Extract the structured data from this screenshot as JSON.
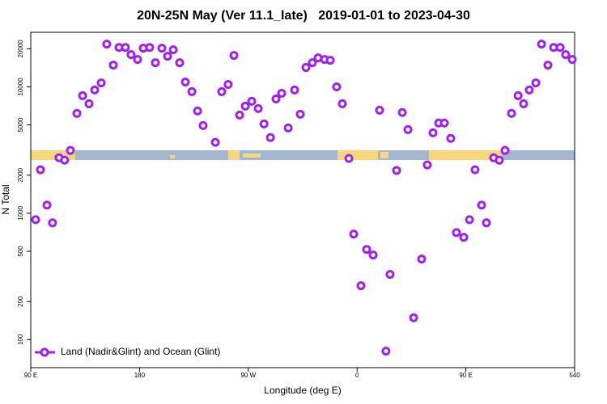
{
  "chart_data": {
    "type": "scatter",
    "title": "20N-25N May (Ver 11.1_late)   2019-01-01 to 2023-04-30",
    "xlabel": "Longitude (deg E)",
    "ylabel": "N Total",
    "xlim": [
      90,
      540
    ],
    "ylim": [
      60,
      27000
    ],
    "ylog": true,
    "legend": "lower left",
    "xticks": [
      {
        "value": 90,
        "label": "90 E"
      },
      180,
      {
        "value": 270,
        "label": "90 W"
      },
      {
        "value": 360,
        "label": "0"
      },
      {
        "value": 450,
        "label": "90 E"
      },
      540
    ],
    "yticks": [
      100,
      200,
      500,
      1000,
      2000,
      5000,
      10000,
      20000
    ],
    "series": [
      {
        "name": "Land (Nadir&Glint) and Ocean (Glint)",
        "color": "#a020f0",
        "x": [
          94,
          98,
          103.4,
          108,
          113.4,
          118,
          122.8,
          128.2,
          132.9,
          138.2,
          142.9,
          148.3,
          152.9,
          158.3,
          163,
          168.3,
          173,
          178.4,
          183.1,
          188.4,
          193.1,
          198.5,
          203.2,
          207.9,
          213.2,
          217.9,
          223.3,
          228,
          232.6,
          242.7,
          248,
          253.3,
          258.1,
          262.8,
          267.5,
          272.8,
          278.2,
          283,
          288.3,
          292.9,
          297.6,
          303,
          308.3,
          313,
          317.7,
          323,
          327.7,
          333.1,
          337.8,
          343.1,
          347.8,
          353.2,
          357.2,
          363.2,
          367.9,
          373.3,
          378.6,
          383.9,
          387.3,
          392.7,
          397.4,
          402.1,
          406.8,
          413.4,
          418.1,
          422.8,
          427.5,
          432.2,
          437.5,
          442.2,
          448.3,
          453,
          457.6,
          463,
          467,
          473,
          477.7,
          482.4,
          487.8,
          493.2,
          497.8,
          502.5,
          507.9,
          512.6,
          517.9,
          522.6,
          528,
          532.6,
          538
        ],
        "values": [
          889,
          2208,
          1159,
          839,
          2749,
          2630,
          3139,
          6166,
          8510,
          7345,
          9440,
          10740,
          21770,
          14860,
          20500,
          20500,
          17980,
          16470,
          20220,
          20500,
          15520,
          20220,
          17460,
          19630,
          15520,
          10920,
          9160,
          6440,
          4940,
          3640,
          9160,
          10450,
          17710,
          5980,
          7030,
          7680,
          6730,
          5090,
          3970,
          8020,
          8890,
          4730,
          9440,
          6070,
          14220,
          15520,
          16950,
          16470,
          16230,
          10000,
          7345,
          2710,
          683,
          267,
          517,
          467,
          6530,
          81,
          328,
          2180,
          6260,
          4590,
          149,
          434,
          2410,
          4330,
          5170,
          5170,
          3910,
          703,
          644,
          889,
          2208,
          1159,
          839,
          2749,
          2630,
          3139,
          6166,
          8510,
          7345,
          9440,
          10740,
          21770,
          14860,
          20500,
          20500,
          17980,
          16470
        ]
      }
    ]
  }
}
